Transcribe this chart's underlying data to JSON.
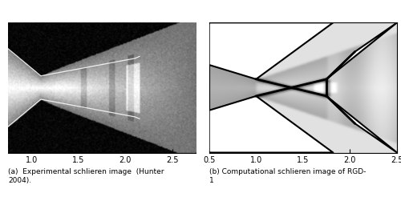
{
  "fig_width": 5.0,
  "fig_height": 2.46,
  "dpi": 100,
  "left_xlim": [
    0.75,
    2.75
  ],
  "left_xticks": [
    1.0,
    1.5,
    2.0,
    2.5
  ],
  "right_xlim": [
    0.5,
    2.5
  ],
  "right_xticks": [
    0.5,
    1.0,
    1.5,
    2.0,
    2.5
  ],
  "caption_a": "(a)  Experimental schlieren image  (Hunter\n2004).",
  "caption_b": "(b) Computational schlieren image of RGD-\n1"
}
